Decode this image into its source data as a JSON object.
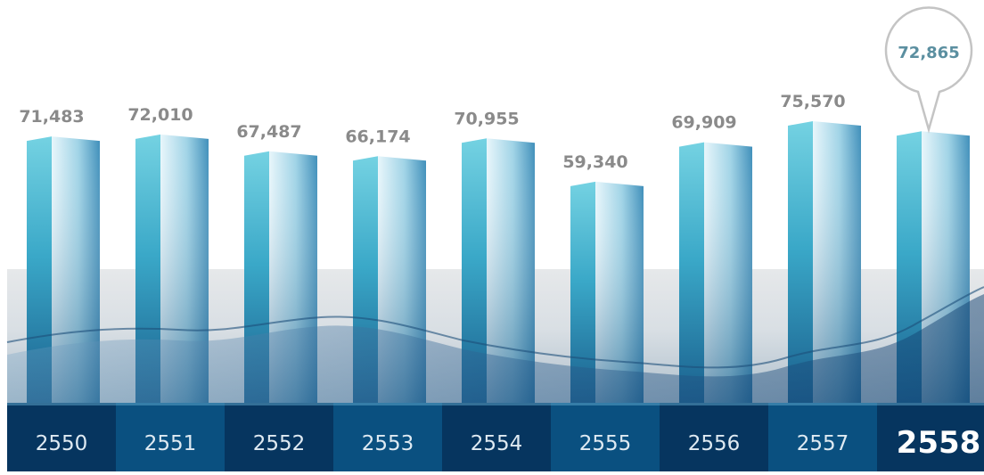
{
  "chart_data": {
    "type": "bar",
    "categories": [
      "2550",
      "2551",
      "2552",
      "2553",
      "2554",
      "2555",
      "2556",
      "2557",
      "2558"
    ],
    "values": [
      71483,
      72010,
      67487,
      66174,
      70955,
      59340,
      69909,
      75570,
      72865
    ],
    "value_labels": [
      "71,483",
      "72,010",
      "67,487",
      "66,174",
      "70,955",
      "59,340",
      "69,909",
      "75,570",
      "72,865"
    ],
    "highlight_index": 8,
    "title": "",
    "xlabel": "",
    "ylabel": "",
    "ylim": [
      0,
      80000
    ],
    "grid": false,
    "legend": "none"
  },
  "colors": {
    "bar_light": "#6fd0e0",
    "bar_dark": "#1b5f8c",
    "label_gray": "#8a8a8a",
    "highlight_label": "#5b8fa0",
    "callout_border": "#c4c4c4",
    "water_band": "#e4e6e8",
    "axis_bg_dark": "#06355f",
    "axis_bg_light": "#0a5080",
    "axis_text": "#dfeaf2",
    "axis_text_highlight": "#ffffff"
  }
}
